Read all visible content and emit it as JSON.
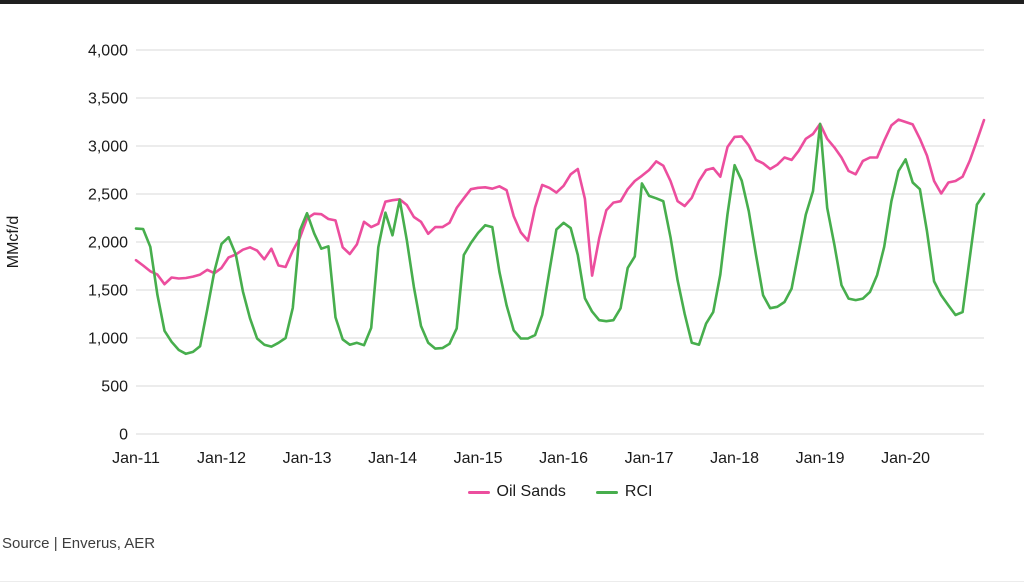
{
  "page": {
    "source_note": "Source | Enverus, AER"
  },
  "chart_data": {
    "type": "line",
    "title": "",
    "xlabel": "",
    "ylabel": "MMcf/d",
    "frequency": "monthly",
    "x_start": "Jan-11",
    "x_end": "Dec-20",
    "x_tick_labels": [
      "Jan-11",
      "Jan-12",
      "Jan-13",
      "Jan-14",
      "Jan-15",
      "Jan-16",
      "Jan-17",
      "Jan-18",
      "Jan-19",
      "Jan-20"
    ],
    "ylim": [
      0,
      4000
    ],
    "y_ticks": [
      0,
      500,
      1000,
      1500,
      2000,
      2500,
      3000,
      3500,
      4000
    ],
    "grid": "horizontal",
    "legend_position": "bottom-center",
    "series": [
      {
        "name": "Oil Sands",
        "color": "#EC4E9E",
        "values": [
          1810,
          1755,
          1695,
          1660,
          1560,
          1630,
          1620,
          1625,
          1640,
          1660,
          1710,
          1675,
          1730,
          1840,
          1870,
          1920,
          1945,
          1910,
          1820,
          1930,
          1755,
          1740,
          1910,
          2045,
          2245,
          2295,
          2290,
          2240,
          2225,
          1945,
          1875,
          1975,
          2210,
          2155,
          2190,
          2420,
          2435,
          2445,
          2385,
          2260,
          2210,
          2085,
          2155,
          2155,
          2200,
          2355,
          2455,
          2550,
          2565,
          2570,
          2555,
          2580,
          2540,
          2270,
          2100,
          2015,
          2360,
          2595,
          2565,
          2515,
          2585,
          2705,
          2760,
          2450,
          1650,
          2040,
          2330,
          2410,
          2425,
          2550,
          2635,
          2690,
          2750,
          2840,
          2795,
          2635,
          2425,
          2375,
          2460,
          2635,
          2750,
          2770,
          2680,
          2990,
          3095,
          3100,
          3005,
          2855,
          2820,
          2760,
          2805,
          2880,
          2855,
          2950,
          3075,
          3125,
          3230,
          3075,
          2985,
          2880,
          2740,
          2705,
          2845,
          2880,
          2880,
          3055,
          3215,
          3275,
          3250,
          3225,
          3075,
          2900,
          2635,
          2505,
          2620,
          2635,
          2680,
          2845,
          3055,
          3270
        ]
      },
      {
        "name": "RCI",
        "color": "#47AE4D",
        "values": [
          2140,
          2135,
          1950,
          1450,
          1075,
          960,
          875,
          835,
          855,
          915,
          1300,
          1695,
          1980,
          2050,
          1870,
          1485,
          1205,
          995,
          930,
          910,
          950,
          1000,
          1315,
          2120,
          2300,
          2090,
          1930,
          1955,
          1215,
          985,
          930,
          950,
          925,
          1105,
          1945,
          2305,
          2070,
          2440,
          2020,
          1530,
          1125,
          950,
          890,
          895,
          940,
          1100,
          1865,
          1990,
          2095,
          2175,
          2155,
          1690,
          1340,
          1080,
          995,
          995,
          1030,
          1240,
          1690,
          2130,
          2200,
          2145,
          1865,
          1415,
          1275,
          1185,
          1175,
          1185,
          1310,
          1730,
          1850,
          2610,
          2480,
          2455,
          2425,
          2050,
          1600,
          1250,
          950,
          930,
          1150,
          1270,
          1660,
          2290,
          2800,
          2640,
          2320,
          1865,
          1445,
          1310,
          1325,
          1375,
          1515,
          1900,
          2285,
          2530,
          3230,
          2355,
          1970,
          1550,
          1410,
          1395,
          1410,
          1480,
          1655,
          1950,
          2425,
          2740,
          2860,
          2620,
          2550,
          2110,
          1590,
          1445,
          1340,
          1240,
          1270,
          1830,
          2390,
          2500
        ]
      }
    ]
  }
}
